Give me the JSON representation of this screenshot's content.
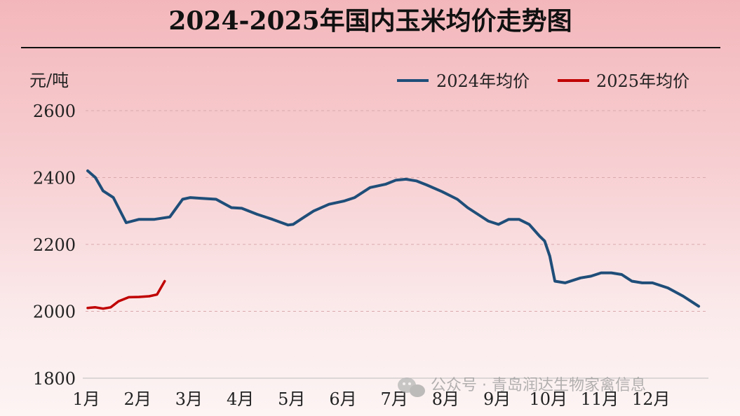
{
  "chart_data": {
    "type": "line",
    "title": "2024-2025年国内玉米均价走势图",
    "ylabel": "元/吨",
    "xlabel": "",
    "x_tick_labels": [
      "1月",
      "2月",
      "3月",
      "4月",
      "5月",
      "6月",
      "7月",
      "8月",
      "9月",
      "10月",
      "11月",
      "12月"
    ],
    "y_ticks": [
      1800,
      2000,
      2200,
      2400,
      2600
    ],
    "ylim": [
      1800,
      2600
    ],
    "xlim": [
      1,
      12.9
    ],
    "grid": "horizontal-dashed",
    "legend_position": "top-right",
    "series": [
      {
        "name": "2024年均价",
        "color": "#1f4e79",
        "x": [
          1.0,
          1.15,
          1.3,
          1.5,
          1.75,
          2.0,
          2.3,
          2.6,
          2.85,
          3.0,
          3.2,
          3.5,
          3.8,
          4.0,
          4.3,
          4.6,
          4.9,
          5.0,
          5.2,
          5.4,
          5.7,
          6.0,
          6.2,
          6.5,
          6.8,
          7.0,
          7.2,
          7.4,
          7.6,
          7.9,
          8.2,
          8.4,
          8.6,
          8.8,
          9.0,
          9.2,
          9.4,
          9.6,
          9.8,
          9.9,
          10.0,
          10.1,
          10.3,
          10.6,
          10.8,
          11.0,
          11.2,
          11.4,
          11.6,
          11.8,
          12.0,
          12.3,
          12.6,
          12.8,
          12.9
        ],
        "y": [
          2420,
          2400,
          2360,
          2340,
          2265,
          2275,
          2275,
          2282,
          2335,
          2340,
          2338,
          2335,
          2310,
          2308,
          2290,
          2275,
          2258,
          2260,
          2280,
          2300,
          2320,
          2330,
          2340,
          2370,
          2380,
          2392,
          2395,
          2390,
          2378,
          2358,
          2335,
          2310,
          2290,
          2270,
          2260,
          2275,
          2275,
          2260,
          2225,
          2210,
          2165,
          2090,
          2085,
          2100,
          2105,
          2115,
          2115,
          2110,
          2090,
          2085,
          2085,
          2070,
          2045,
          2025,
          2015
        ]
      },
      {
        "name": "2025年均价",
        "color": "#c00000",
        "x": [
          1.0,
          1.15,
          1.3,
          1.45,
          1.6,
          1.8,
          2.0,
          2.2,
          2.35,
          2.5
        ],
        "y": [
          2010,
          2012,
          2008,
          2012,
          2030,
          2042,
          2043,
          2045,
          2050,
          2090
        ]
      }
    ]
  },
  "watermark": {
    "icon": "wechat-icon",
    "text": "公众号 · 青岛润达生物家禽信息"
  }
}
